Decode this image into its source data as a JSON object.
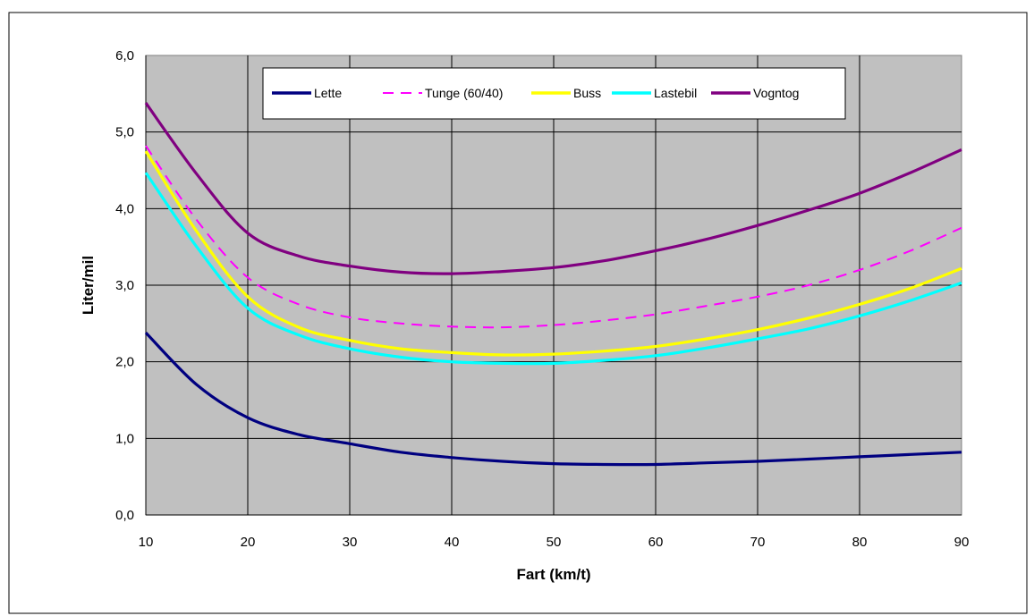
{
  "chart_data": {
    "type": "line",
    "xlabel": "Fart (km/t)",
    "ylabel": "Liter/mil",
    "xlim": [
      10,
      90
    ],
    "ylim": [
      0,
      6
    ],
    "x_ticks": [
      10,
      20,
      30,
      40,
      50,
      60,
      70,
      80,
      90
    ],
    "x_tick_labels": [
      "10",
      "20",
      "30",
      "40",
      "50",
      "60",
      "70",
      "80",
      "90"
    ],
    "y_ticks": [
      0,
      1,
      2,
      3,
      4,
      5,
      6
    ],
    "y_tick_labels": [
      "0,0",
      "1,0",
      "2,0",
      "3,0",
      "4,0",
      "5,0",
      "6,0"
    ],
    "grid": true,
    "legend_position": "top",
    "plot_background": "#c0c0c0",
    "x": [
      10,
      15,
      20,
      25,
      30,
      35,
      40,
      45,
      50,
      55,
      60,
      65,
      70,
      75,
      80,
      85,
      90
    ],
    "series": [
      {
        "name": "Lette",
        "color": "#000080",
        "dash": "solid",
        "values": [
          2.38,
          1.7,
          1.27,
          1.05,
          0.93,
          0.82,
          0.75,
          0.7,
          0.67,
          0.66,
          0.66,
          0.68,
          0.7,
          0.73,
          0.76,
          0.79,
          0.82
        ]
      },
      {
        "name": "Tunge (60/40)",
        "color": "#ff00ff",
        "dash": "dashed",
        "values": [
          4.82,
          3.85,
          3.1,
          2.75,
          2.58,
          2.5,
          2.46,
          2.45,
          2.48,
          2.54,
          2.62,
          2.73,
          2.85,
          3.0,
          3.2,
          3.45,
          3.75
        ]
      },
      {
        "name": "Buss",
        "color": "#ffff00",
        "dash": "solid",
        "values": [
          4.75,
          3.7,
          2.85,
          2.45,
          2.28,
          2.17,
          2.12,
          2.09,
          2.1,
          2.14,
          2.2,
          2.3,
          2.42,
          2.57,
          2.75,
          2.96,
          3.22
        ]
      },
      {
        "name": "Lastebil",
        "color": "#00ffff",
        "dash": "solid",
        "values": [
          4.47,
          3.5,
          2.7,
          2.35,
          2.17,
          2.06,
          2.0,
          1.98,
          1.98,
          2.02,
          2.08,
          2.18,
          2.3,
          2.43,
          2.6,
          2.8,
          3.03
        ]
      },
      {
        "name": "Vogntog",
        "color": "#800080",
        "dash": "solid",
        "values": [
          5.38,
          4.45,
          3.68,
          3.38,
          3.25,
          3.17,
          3.15,
          3.18,
          3.23,
          3.32,
          3.45,
          3.6,
          3.78,
          3.98,
          4.2,
          4.47,
          4.77
        ]
      }
    ]
  }
}
